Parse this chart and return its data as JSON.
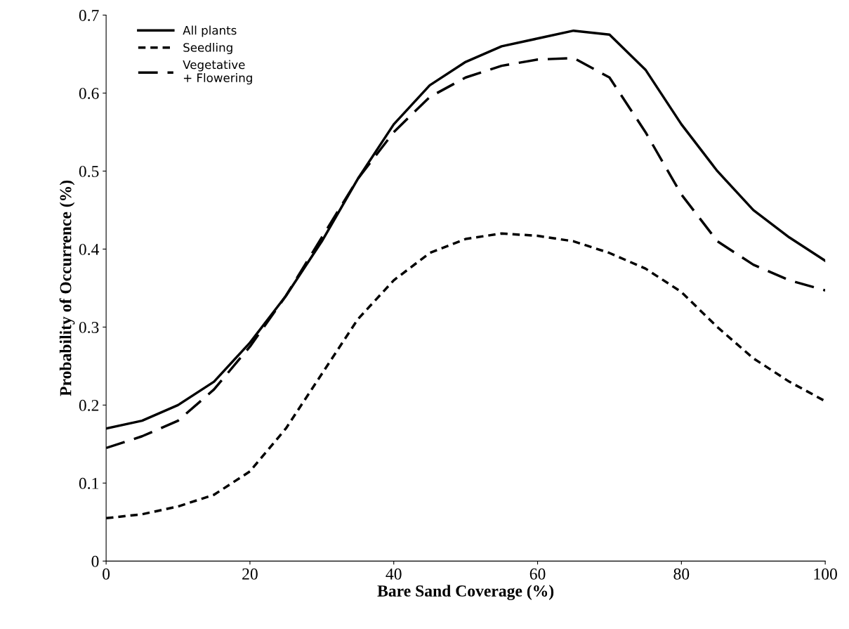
{
  "chart_data": {
    "type": "line",
    "xlabel": "Bare Sand Coverage (%)",
    "ylabel": "Probability of Occurrence (%)",
    "x": [
      0,
      5,
      10,
      15,
      20,
      25,
      30,
      35,
      40,
      45,
      50,
      55,
      60,
      65,
      70,
      75,
      80,
      85,
      90,
      95,
      100
    ],
    "series": [
      {
        "name": "All plants",
        "color": "#000000",
        "line_style": "solid",
        "values": [
          0.17,
          0.18,
          0.2,
          0.23,
          0.28,
          0.34,
          0.41,
          0.49,
          0.56,
          0.61,
          0.64,
          0.66,
          0.67,
          0.68,
          0.675,
          0.63,
          0.56,
          0.5,
          0.45,
          0.415,
          0.385
        ]
      },
      {
        "name": "Seedling",
        "color": "#000000",
        "line_style": "dotted",
        "values": [
          0.055,
          0.06,
          0.07,
          0.085,
          0.115,
          0.17,
          0.24,
          0.31,
          0.36,
          0.395,
          0.413,
          0.42,
          0.417,
          0.41,
          0.395,
          0.375,
          0.345,
          0.3,
          0.26,
          0.23,
          0.205
        ]
      },
      {
        "name": "Vegetative\n+ Flowering",
        "color": "#000000",
        "line_style": "dashed",
        "values": [
          0.145,
          0.16,
          0.18,
          0.22,
          0.275,
          0.34,
          0.415,
          0.49,
          0.55,
          0.595,
          0.62,
          0.635,
          0.643,
          0.645,
          0.62,
          0.55,
          0.47,
          0.41,
          0.38,
          0.36,
          0.347
        ]
      }
    ],
    "xlim": [
      0,
      100
    ],
    "xticks": [
      0,
      20,
      40,
      60,
      80,
      100
    ],
    "ylim": [
      0,
      0.7
    ],
    "yticks": [
      0,
      0.1,
      0.2,
      0.3,
      0.4,
      0.5,
      0.6,
      0.7
    ],
    "legend": "top left",
    "grid": false,
    "marker": "none"
  }
}
